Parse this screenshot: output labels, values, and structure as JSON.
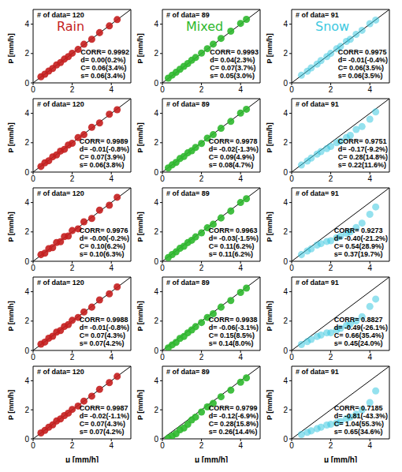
{
  "chart_data": [
    {
      "type": "scatter",
      "title": "Rain",
      "annotations": [
        "# of data= 120",
        "CORR= 0.9992",
        "d= 0.00(0.2%)",
        "C= 0.06(3.4%)",
        "s= 0.06(3.4%)"
      ],
      "ylabel": "P [mm/h]",
      "xlim": [
        0,
        5
      ],
      "ylim": [
        0,
        5
      ],
      "xticks": [
        0,
        2,
        4
      ],
      "yticks": [
        0,
        2,
        4
      ],
      "identity_line": {
        "x": [
          0,
          5
        ],
        "y": [
          0,
          5
        ],
        "color": "#000000"
      },
      "series": [
        {
          "color": "#c41e1e",
          "marker": "circle",
          "x": [
            0.4,
            0.6,
            0.8,
            1.0,
            1.2,
            1.4,
            1.6,
            1.8,
            2.0,
            2.3,
            2.6,
            3.0,
            3.4,
            3.9,
            4.3
          ],
          "y": [
            0.42,
            0.59,
            0.81,
            0.98,
            1.22,
            1.38,
            1.62,
            1.79,
            2.02,
            2.28,
            2.63,
            2.97,
            3.42,
            3.88,
            4.31
          ]
        }
      ]
    },
    {
      "type": "scatter",
      "title": "Mixed",
      "annotations": [
        "# of data= 89",
        "CORR= 0.9993",
        "d= 0.04(2.3%)",
        "C= 0.07(3.7%)",
        "s= 0.05(3.0%)"
      ],
      "ylabel": "P [mm/h]",
      "xlim": [
        0,
        5
      ],
      "ylim": [
        0,
        5
      ],
      "xticks": [
        0,
        2,
        4
      ],
      "yticks": [
        0,
        2,
        4
      ],
      "identity_line": {
        "x": [
          0,
          5
        ],
        "y": [
          0,
          5
        ],
        "color": "#000000"
      },
      "series": [
        {
          "color": "#2db82d",
          "marker": "circle",
          "x": [
            0.3,
            0.5,
            0.7,
            0.9,
            1.1,
            1.3,
            1.5,
            1.7,
            2.0,
            2.3,
            2.6,
            3.0,
            3.5,
            4.0,
            4.3
          ],
          "y": [
            0.32,
            0.53,
            0.72,
            0.93,
            1.13,
            1.32,
            1.54,
            1.73,
            2.03,
            2.33,
            2.64,
            3.03,
            3.52,
            4.05,
            4.33
          ]
        }
      ]
    },
    {
      "type": "scatter",
      "title": "Snow",
      "annotations": [
        "# of data= 91",
        "CORR= 0.9975",
        "d= -0.01(-0.4%)",
        "C= 0.06(3.5%)",
        "s= 0.06(3.5%)"
      ],
      "ylabel": "P [mm/h]",
      "xlim": [
        0,
        5
      ],
      "ylim": [
        0,
        5
      ],
      "xticks": [
        0,
        2,
        4
      ],
      "yticks": [
        0,
        2,
        4
      ],
      "identity_line": {
        "x": [
          0,
          5
        ],
        "y": [
          0,
          5
        ],
        "color": "#000000"
      },
      "series": [
        {
          "color": "#3cc8e0",
          "marker": "circle",
          "x": [
            0.5,
            0.8,
            1.0,
            1.3,
            1.5,
            1.8,
            2.0,
            2.3,
            2.5,
            2.8,
            3.0,
            3.3,
            3.6,
            4.0,
            4.3
          ],
          "y": [
            0.52,
            0.79,
            1.02,
            1.28,
            1.52,
            1.79,
            2.01,
            2.32,
            2.48,
            2.82,
            2.97,
            3.31,
            3.58,
            4.03,
            4.28
          ]
        }
      ]
    },
    {
      "type": "scatter",
      "annotations": [
        "# of data= 120",
        "CORR= 0.9989",
        "d= -0.01(-0.8%)",
        "C= 0.07(3.9%)",
        "s= 0.06(3.8%)"
      ],
      "ylabel": "P [mm/h]",
      "xlim": [
        0,
        5
      ],
      "ylim": [
        0,
        5
      ],
      "xticks": [
        0,
        2,
        4
      ],
      "yticks": [
        0,
        2,
        4
      ],
      "identity_line": {
        "x": [
          0,
          5
        ],
        "y": [
          0,
          5
        ],
        "color": "#000000"
      },
      "series": [
        {
          "color": "#c41e1e",
          "marker": "circle",
          "x": [
            0.4,
            0.6,
            0.8,
            1.0,
            1.2,
            1.4,
            1.6,
            1.8,
            2.0,
            2.3,
            2.6,
            3.0,
            3.4,
            3.9,
            4.3
          ],
          "y": [
            0.38,
            0.63,
            0.77,
            1.04,
            1.17,
            1.43,
            1.55,
            1.84,
            1.96,
            2.35,
            2.55,
            3.05,
            3.35,
            3.94,
            4.25
          ]
        }
      ]
    },
    {
      "type": "scatter",
      "annotations": [
        "# of data= 89",
        "CORR= 0.9978",
        "d= -0.02(-1.3%)",
        "C= 0.09(4.9%)",
        "s= 0.08(4.7%)"
      ],
      "ylabel": "P [mm/h]",
      "xlim": [
        0,
        5
      ],
      "ylim": [
        0,
        5
      ],
      "xticks": [
        0,
        2,
        4
      ],
      "yticks": [
        0,
        2,
        4
      ],
      "identity_line": {
        "x": [
          0,
          5
        ],
        "y": [
          0,
          5
        ],
        "color": "#000000"
      },
      "series": [
        {
          "color": "#2db82d",
          "marker": "circle",
          "x": [
            0.3,
            0.5,
            0.7,
            0.9,
            1.1,
            1.3,
            1.5,
            1.7,
            2.0,
            2.3,
            2.6,
            3.0,
            3.5,
            4.0,
            4.3
          ],
          "y": [
            0.28,
            0.49,
            0.66,
            0.92,
            1.06,
            1.31,
            1.45,
            1.68,
            1.95,
            2.31,
            2.55,
            2.98,
            3.45,
            4.02,
            4.28
          ]
        }
      ]
    },
    {
      "type": "scatter",
      "annotations": [
        "# of data= 91",
        "CORR= 0.9751",
        "d= -0.17(-9.2%)",
        "C= 0.28(14.8%)",
        "s= 0.22(11.6%)"
      ],
      "ylabel": "P [mm/h]",
      "xlim": [
        0,
        5
      ],
      "ylim": [
        0,
        5
      ],
      "xticks": [
        0,
        2,
        4
      ],
      "yticks": [
        0,
        2,
        4
      ],
      "identity_line": {
        "x": [
          0,
          5
        ],
        "y": [
          0,
          5
        ],
        "color": "#000000"
      },
      "series": [
        {
          "color": "#3cc8e0",
          "marker": "circle",
          "x": [
            0.5,
            0.8,
            1.0,
            1.3,
            1.5,
            1.8,
            2.0,
            2.3,
            2.5,
            2.8,
            3.0,
            3.3,
            3.6,
            4.0,
            4.3
          ],
          "y": [
            0.48,
            0.75,
            0.95,
            1.22,
            1.4,
            1.6,
            1.75,
            2.0,
            2.1,
            2.35,
            2.5,
            2.9,
            3.1,
            3.6,
            4.1
          ]
        }
      ]
    },
    {
      "type": "scatter",
      "annotations": [
        "# of data= 120",
        "CORR= 0.9976",
        "d= -0.00(-0.2%)",
        "C= 0.10(6.2%)",
        "s= 0.10(6.3%)"
      ],
      "ylabel": "P [mm/h]",
      "xlim": [
        0,
        5
      ],
      "ylim": [
        0,
        5
      ],
      "xticks": [
        0,
        2,
        4
      ],
      "yticks": [
        0,
        2,
        4
      ],
      "identity_line": {
        "x": [
          0,
          5
        ],
        "y": [
          0,
          5
        ],
        "color": "#000000"
      },
      "series": [
        {
          "color": "#c41e1e",
          "marker": "circle",
          "x": [
            0.4,
            0.6,
            0.8,
            1.0,
            1.2,
            1.4,
            1.6,
            1.8,
            2.0,
            2.3,
            2.6,
            3.0,
            3.4,
            3.9,
            4.3
          ],
          "y": [
            0.45,
            0.55,
            0.86,
            0.93,
            1.28,
            1.33,
            1.68,
            1.72,
            2.09,
            2.21,
            2.69,
            2.92,
            3.48,
            3.82,
            4.36
          ]
        }
      ]
    },
    {
      "type": "scatter",
      "annotations": [
        "# of data= 89",
        "CORR= 0.9963",
        "d= -0.03(-1.5%)",
        "C= 0.11(6.2%)",
        "s= 0.11(6.2%)"
      ],
      "ylabel": "P [mm/h]",
      "xlim": [
        0,
        5
      ],
      "ylim": [
        0,
        5
      ],
      "xticks": [
        0,
        2,
        4
      ],
      "yticks": [
        0,
        2,
        4
      ],
      "identity_line": {
        "x": [
          0,
          5
        ],
        "y": [
          0,
          5
        ],
        "color": "#000000"
      },
      "series": [
        {
          "color": "#2db82d",
          "marker": "circle",
          "x": [
            0.3,
            0.5,
            0.7,
            0.9,
            1.1,
            1.3,
            1.5,
            1.7,
            2.0,
            2.3,
            2.6,
            3.0,
            3.5,
            4.0,
            4.3
          ],
          "y": [
            0.25,
            0.46,
            0.64,
            0.88,
            1.02,
            1.27,
            1.43,
            1.66,
            1.93,
            2.28,
            2.52,
            2.95,
            3.42,
            4.0,
            4.26
          ]
        }
      ]
    },
    {
      "type": "scatter",
      "annotations": [
        "# of data= 91",
        "CORR= 0.9273",
        "d= -0.40(-21.2%)",
        "C= 0.54(28.9%)",
        "s= 0.37(19.7%)"
      ],
      "ylabel": "P [mm/h]",
      "xlim": [
        0,
        5
      ],
      "ylim": [
        0,
        5
      ],
      "xticks": [
        0,
        2,
        4
      ],
      "yticks": [
        0,
        2,
        4
      ],
      "identity_line": {
        "x": [
          0,
          5
        ],
        "y": [
          0,
          5
        ],
        "color": "#000000"
      },
      "series": [
        {
          "color": "#3cc8e0",
          "marker": "circle",
          "x": [
            0.5,
            0.8,
            1.0,
            1.3,
            1.5,
            1.8,
            2.0,
            2.3,
            2.5,
            2.8,
            3.0,
            3.3,
            3.6,
            4.0,
            4.3
          ],
          "y": [
            0.45,
            0.7,
            0.85,
            1.1,
            1.2,
            1.35,
            1.4,
            1.6,
            1.7,
            1.9,
            2.0,
            2.3,
            2.6,
            3.2,
            3.7
          ]
        }
      ]
    },
    {
      "type": "scatter",
      "annotations": [
        "# of data= 120",
        "CORR= 0.9988",
        "d= -0.01(-0.8%)",
        "C= 0.07(4.3%)",
        "s= 0.07(4.2%)"
      ],
      "ylabel": "P [mm/h]",
      "xlim": [
        0,
        5
      ],
      "ylim": [
        0,
        5
      ],
      "xticks": [
        0,
        2,
        4
      ],
      "yticks": [
        0,
        2,
        4
      ],
      "identity_line": {
        "x": [
          0,
          5
        ],
        "y": [
          0,
          5
        ],
        "color": "#000000"
      },
      "series": [
        {
          "color": "#c41e1e",
          "marker": "circle",
          "x": [
            0.4,
            0.6,
            0.8,
            1.0,
            1.2,
            1.4,
            1.6,
            1.8,
            2.0,
            2.3,
            2.6,
            3.0,
            3.4,
            3.9,
            4.3
          ],
          "y": [
            0.43,
            0.57,
            0.83,
            0.97,
            1.25,
            1.36,
            1.63,
            1.76,
            2.05,
            2.25,
            2.62,
            2.95,
            3.44,
            3.86,
            4.33
          ]
        }
      ]
    },
    {
      "type": "scatter",
      "annotations": [
        "# of data= 89",
        "CORR= 0.9938",
        "d= -0.06(-3.1%)",
        "C= 0.15(8.5%)",
        "s= 0.14(8.0%)"
      ],
      "ylabel": "P [mm/h]",
      "xlim": [
        0,
        5
      ],
      "ylim": [
        0,
        5
      ],
      "xticks": [
        0,
        2,
        4
      ],
      "yticks": [
        0,
        2,
        4
      ],
      "identity_line": {
        "x": [
          0,
          5
        ],
        "y": [
          0,
          5
        ],
        "color": "#000000"
      },
      "series": [
        {
          "color": "#2db82d",
          "marker": "circle",
          "x": [
            0.3,
            0.5,
            0.7,
            0.9,
            1.1,
            1.3,
            1.5,
            1.7,
            2.0,
            2.3,
            2.6,
            3.0,
            3.5,
            4.0,
            4.3
          ],
          "y": [
            0.18,
            0.38,
            0.55,
            0.82,
            0.95,
            1.2,
            1.4,
            1.62,
            1.9,
            2.25,
            2.5,
            2.95,
            3.4,
            3.95,
            4.25
          ]
        }
      ]
    },
    {
      "type": "scatter",
      "annotations": [
        "# of data= 91",
        "CORR= 0.8827",
        "d= -0.49(-26.1%)",
        "C= 0.66(35.4%)",
        "s= 0.45(24.0%)"
      ],
      "ylabel": "P [mm/h]",
      "xlim": [
        0,
        5
      ],
      "ylim": [
        0,
        5
      ],
      "xticks": [
        0,
        2,
        4
      ],
      "yticks": [
        0,
        2,
        4
      ],
      "identity_line": {
        "x": [
          0,
          5
        ],
        "y": [
          0,
          5
        ],
        "color": "#000000"
      },
      "series": [
        {
          "color": "#3cc8e0",
          "marker": "circle",
          "x": [
            0.5,
            0.8,
            1.0,
            1.3,
            1.5,
            1.8,
            2.0,
            2.3,
            2.5,
            2.8,
            3.0,
            3.3,
            3.6,
            4.0,
            4.3
          ],
          "y": [
            0.4,
            0.6,
            0.75,
            0.95,
            1.05,
            1.2,
            1.2,
            1.4,
            1.5,
            1.7,
            1.8,
            2.0,
            2.3,
            3.0,
            3.5
          ]
        }
      ]
    },
    {
      "type": "scatter",
      "annotations": [
        "# of data= 120",
        "CORR= 0.9987",
        "d= -0.02(-1.1%)",
        "C= 0.07(4.3%)",
        "s= 0.07(4.2%)"
      ],
      "xlabel": "μ [mm/h]",
      "ylabel": "P [mm/h]",
      "xlim": [
        0,
        5
      ],
      "ylim": [
        0,
        5
      ],
      "xticks": [
        0,
        2,
        4
      ],
      "yticks": [
        0,
        2,
        4
      ],
      "identity_line": {
        "x": [
          0,
          5
        ],
        "y": [
          0,
          5
        ],
        "color": "#000000"
      },
      "series": [
        {
          "color": "#c41e1e",
          "marker": "circle",
          "x": [
            0.4,
            0.6,
            0.8,
            1.0,
            1.2,
            1.4,
            1.6,
            1.8,
            2.0,
            2.3,
            2.6,
            3.0,
            3.4,
            3.9,
            4.3
          ],
          "y": [
            0.41,
            0.58,
            0.8,
            0.96,
            1.23,
            1.37,
            1.6,
            1.77,
            2.03,
            2.26,
            2.6,
            2.94,
            3.41,
            3.87,
            4.3
          ]
        }
      ]
    },
    {
      "type": "scatter",
      "annotations": [
        "# of data= 89",
        "CORR= 0.9799",
        "d= -0.12(-6.9%)",
        "C= 0.28(15.8%)",
        "s= 0.26(14.4%)"
      ],
      "xlabel": "μ [mm/h]",
      "ylabel": "P [mm/h]",
      "xlim": [
        0,
        5
      ],
      "ylim": [
        0,
        5
      ],
      "xticks": [
        0,
        2,
        4
      ],
      "yticks": [
        0,
        2,
        4
      ],
      "identity_line": {
        "x": [
          0,
          5
        ],
        "y": [
          0,
          5
        ],
        "color": "#000000"
      },
      "series": [
        {
          "color": "#2db82d",
          "marker": "circle",
          "x": [
            0.3,
            0.5,
            0.7,
            0.9,
            1.1,
            1.3,
            1.5,
            1.7,
            2.0,
            2.3,
            2.6,
            3.0,
            3.5,
            4.0,
            4.3
          ],
          "y": [
            0.05,
            0.2,
            0.35,
            0.62,
            0.75,
            1.0,
            1.3,
            1.5,
            1.85,
            2.2,
            2.45,
            2.9,
            3.35,
            3.9,
            4.2
          ]
        }
      ]
    },
    {
      "type": "scatter",
      "annotations": [
        "# of data= 91",
        "CORR= 0.7185",
        "d= -0.81(-43.3%)",
        "C= 1.04(55.3%)",
        "s= 0.65(34.6%)"
      ],
      "xlabel": "μ [mm/h]",
      "ylabel": "P [mm/h]",
      "xlim": [
        0,
        5
      ],
      "ylim": [
        0,
        5
      ],
      "xticks": [
        0,
        2,
        4
      ],
      "yticks": [
        0,
        2,
        4
      ],
      "identity_line": {
        "x": [
          0,
          5
        ],
        "y": [
          0,
          5
        ],
        "color": "#000000"
      },
      "series": [
        {
          "color": "#3cc8e0",
          "marker": "circle",
          "x": [
            0.5,
            0.8,
            1.0,
            1.3,
            1.5,
            1.8,
            2.0,
            2.3,
            2.5,
            2.8,
            3.0,
            3.3,
            3.6,
            4.0,
            4.3
          ],
          "y": [
            0.3,
            0.45,
            0.55,
            0.7,
            0.8,
            0.95,
            1.0,
            1.1,
            1.2,
            1.4,
            1.5,
            1.7,
            2.0,
            2.5,
            3.3
          ]
        }
      ]
    }
  ]
}
